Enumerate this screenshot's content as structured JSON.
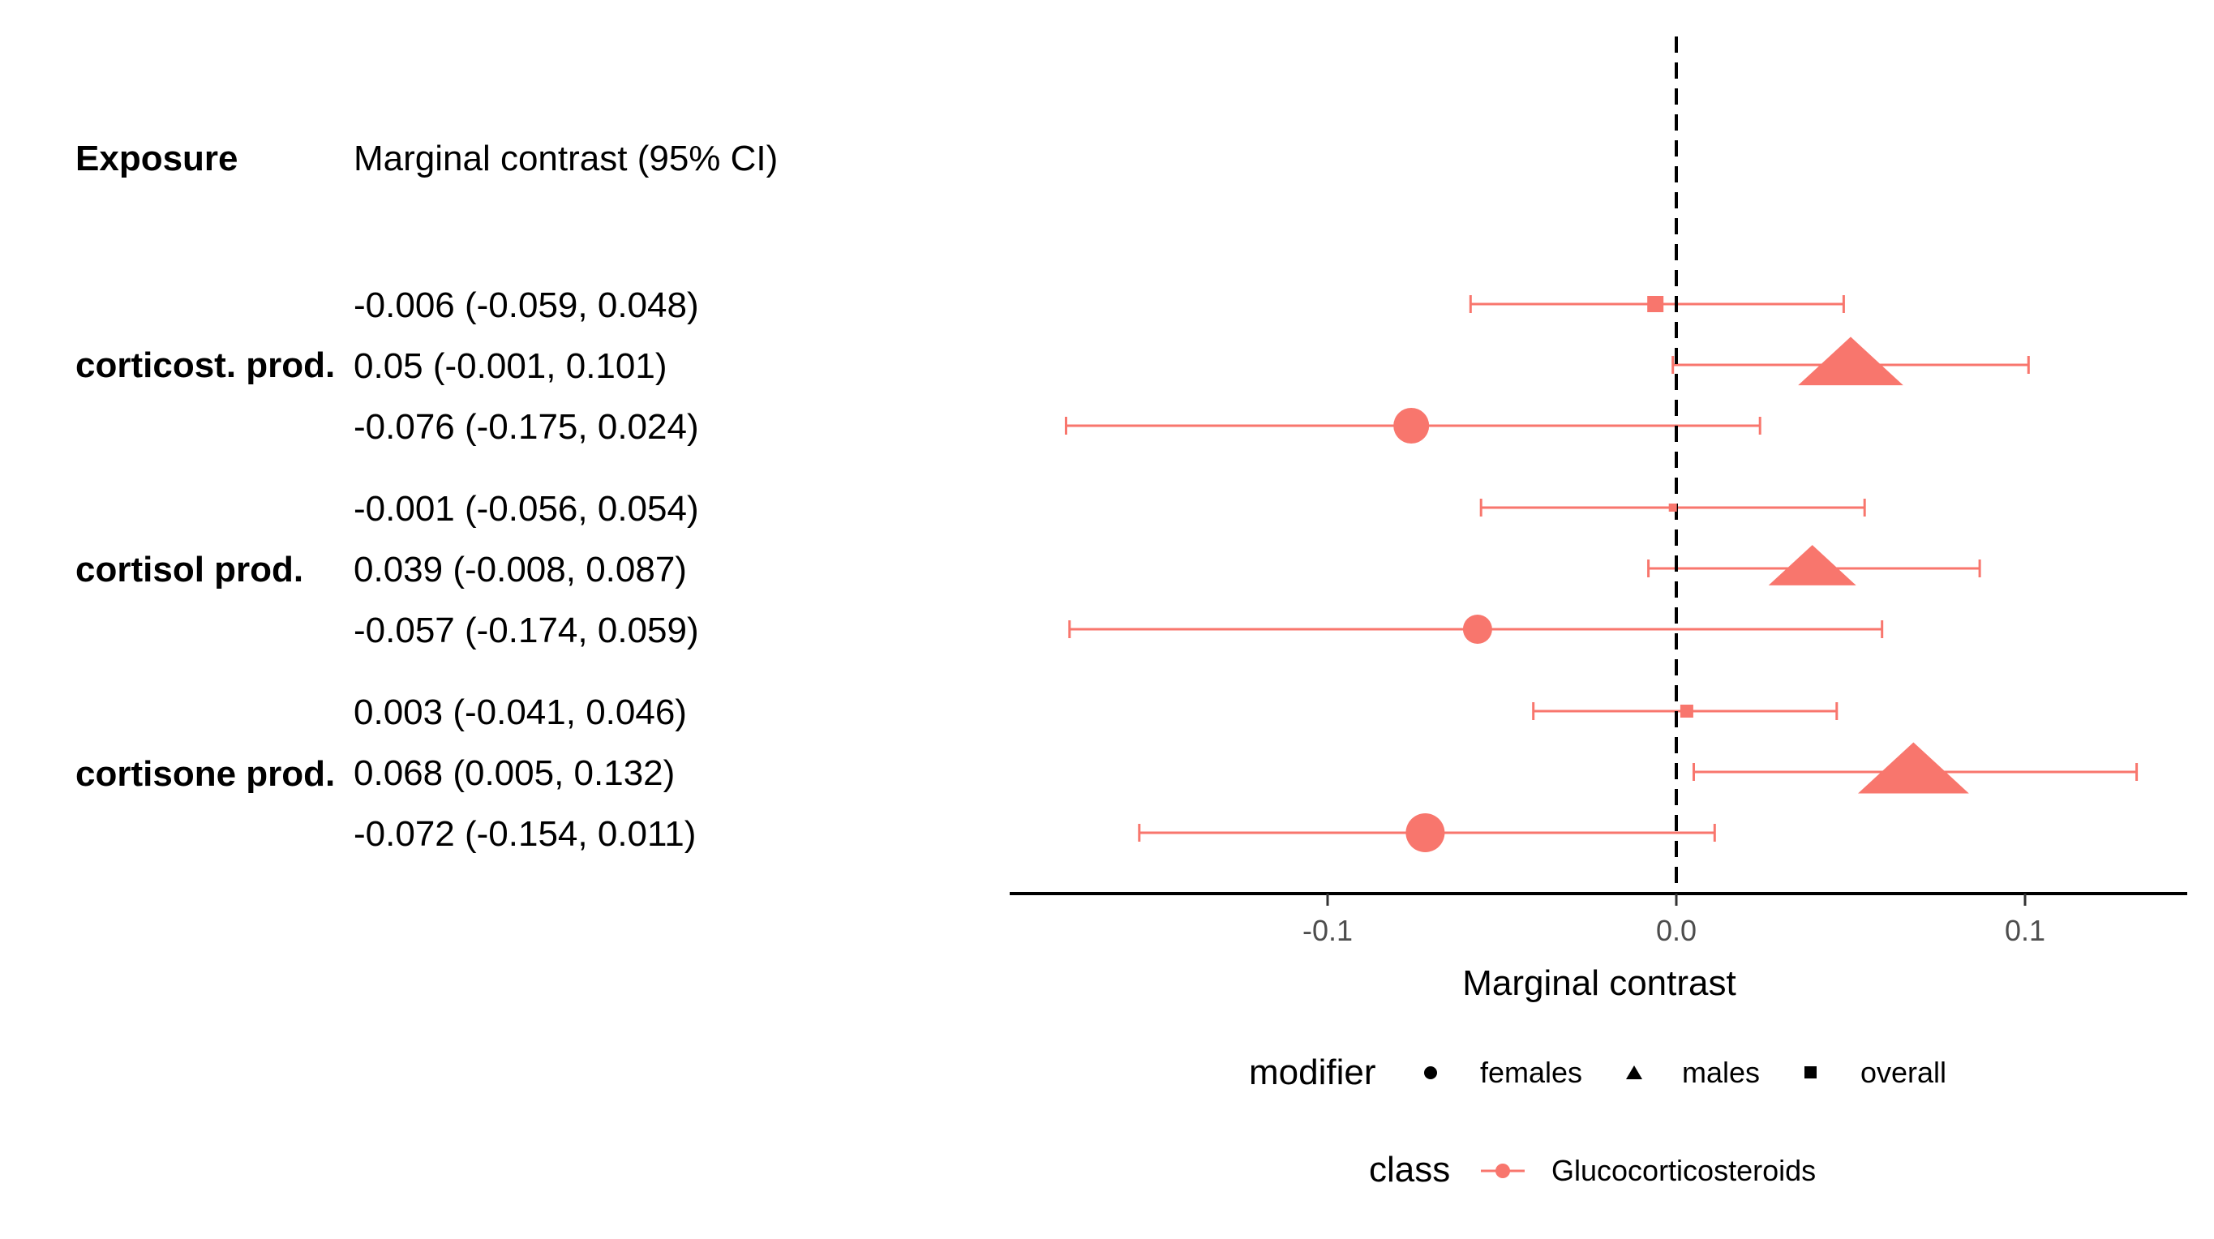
{
  "table": {
    "header_exposure": "Exposure",
    "header_contrast": "Marginal contrast (95% CI)",
    "exposures": [
      "corticost. prod.",
      "cortisol prod.",
      "cortisone prod."
    ]
  },
  "chart_data": {
    "type": "scatter",
    "subtype": "forest-plot",
    "xlabel": "Marginal contrast",
    "x_ticks": [
      -0.1,
      0.0,
      0.1
    ],
    "x_tick_labels": [
      "-0.1",
      "0.0",
      "0.1"
    ],
    "xlim": [
      -0.19,
      0.149
    ],
    "reference_line": 0,
    "rows": [
      {
        "exposure": "corticost. prod.",
        "modifier": "overall",
        "estimate": -0.006,
        "lower": -0.059,
        "upper": 0.048,
        "label": "-0.006 (-0.059, 0.048)",
        "size": 10
      },
      {
        "exposure": "corticost. prod.",
        "modifier": "males",
        "estimate": 0.05,
        "lower": -0.001,
        "upper": 0.101,
        "label": "0.05 (-0.001, 0.101)",
        "size": 36
      },
      {
        "exposure": "corticost. prod.",
        "modifier": "females",
        "estimate": -0.076,
        "lower": -0.175,
        "upper": 0.024,
        "label": "-0.076 (-0.175, 0.024)",
        "size": 22
      },
      {
        "exposure": "cortisol prod.",
        "modifier": "overall",
        "estimate": -0.001,
        "lower": -0.056,
        "upper": 0.054,
        "label": "-0.001 (-0.056, 0.054)",
        "size": 5
      },
      {
        "exposure": "cortisol prod.",
        "modifier": "males",
        "estimate": 0.039,
        "lower": -0.008,
        "upper": 0.087,
        "label": "0.039 (-0.008, 0.087)",
        "size": 30
      },
      {
        "exposure": "cortisol prod.",
        "modifier": "females",
        "estimate": -0.057,
        "lower": -0.174,
        "upper": 0.059,
        "label": "-0.057 (-0.174, 0.059)",
        "size": 18
      },
      {
        "exposure": "cortisone prod.",
        "modifier": "overall",
        "estimate": 0.003,
        "lower": -0.041,
        "upper": 0.046,
        "label": "0.003 (-0.041, 0.046)",
        "size": 8
      },
      {
        "exposure": "cortisone prod.",
        "modifier": "males",
        "estimate": 0.068,
        "lower": 0.005,
        "upper": 0.132,
        "label": "0.068 (0.005, 0.132)",
        "size": 38
      },
      {
        "exposure": "cortisone prod.",
        "modifier": "females",
        "estimate": -0.072,
        "lower": -0.154,
        "upper": 0.011,
        "label": "-0.072 (-0.154, 0.011)",
        "size": 24
      }
    ],
    "legend_modifier": {
      "title": "modifier",
      "items": [
        {
          "label": "females",
          "shape": "circle"
        },
        {
          "label": "males",
          "shape": "triangle"
        },
        {
          "label": "overall",
          "shape": "square"
        }
      ]
    },
    "legend_class": {
      "title": "class",
      "items": [
        {
          "label": "Glucocorticosteroids",
          "color": "#F8766D"
        }
      ]
    },
    "series_color": "#F8766D",
    "axis_color": "#000000",
    "tick_label_color": "#4d4d4d"
  }
}
